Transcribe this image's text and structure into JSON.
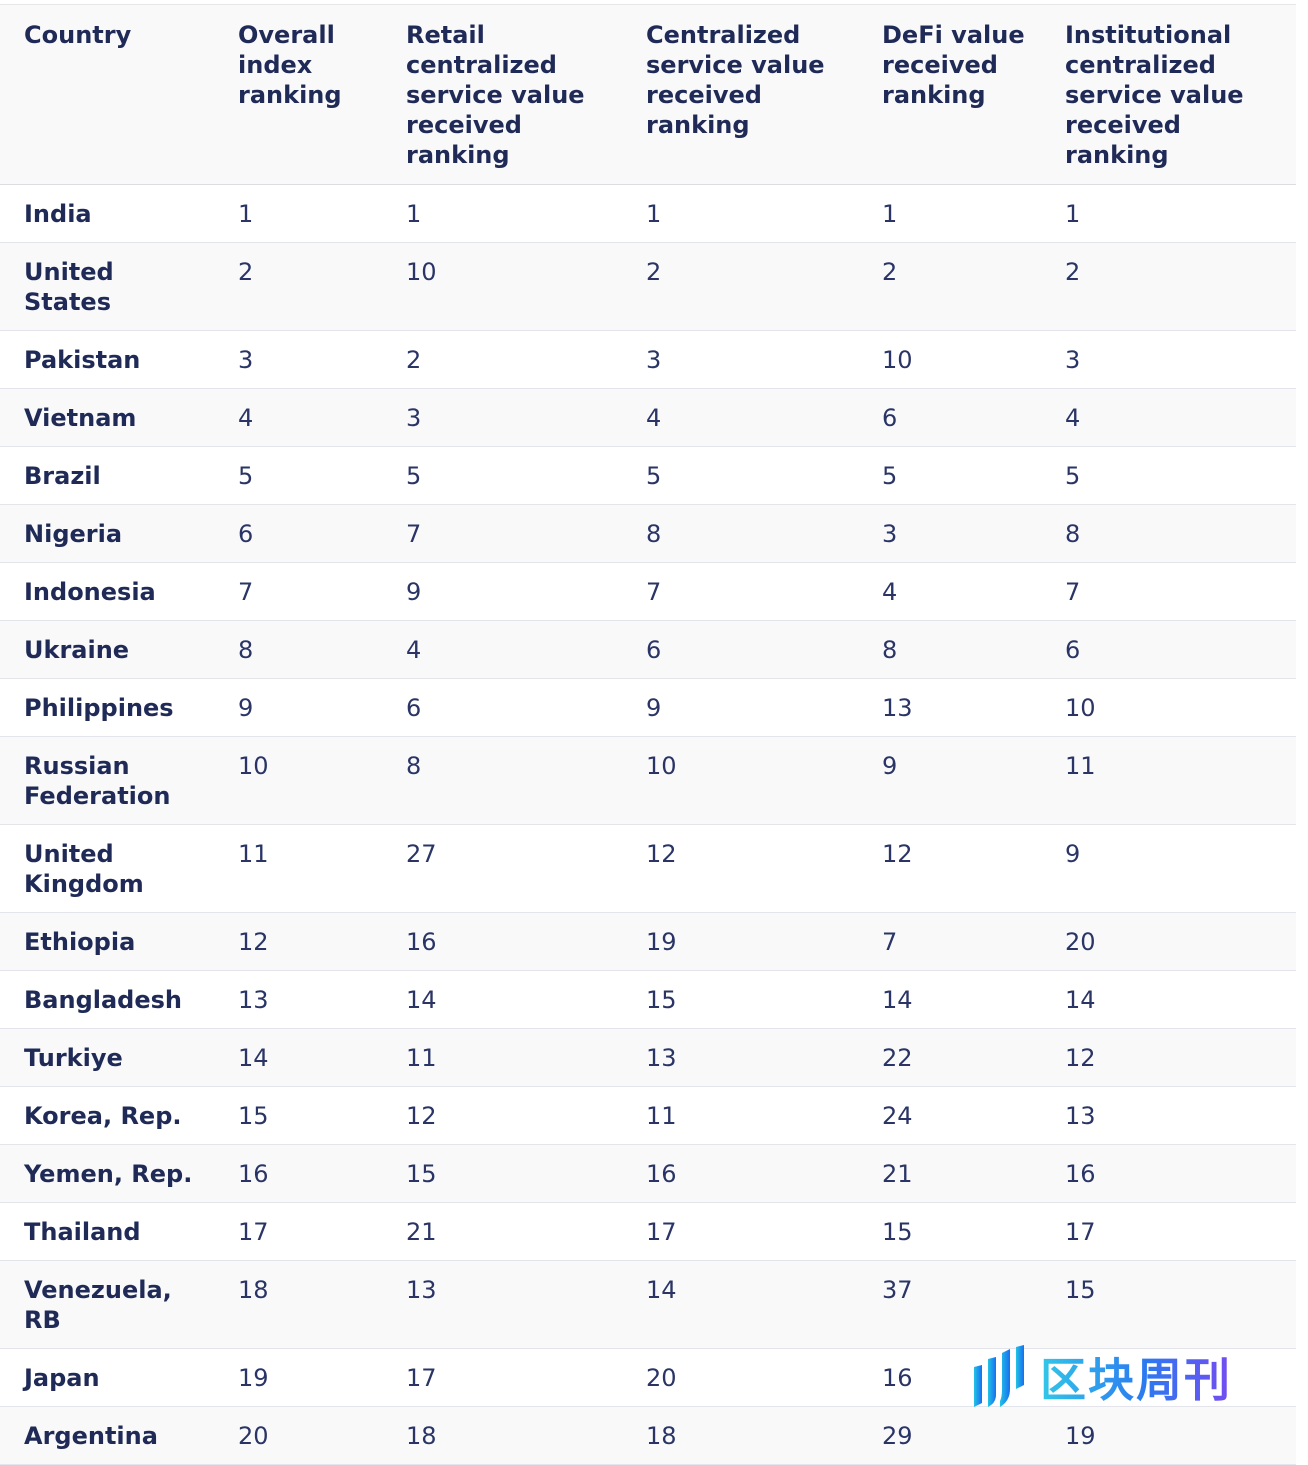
{
  "table": {
    "headers": [
      "Country",
      "Overall index ranking",
      "Retail centralized service value received ranking",
      "Centralized service value received ranking",
      "DeFi value received ranking",
      "Institutional centralized service value received ranking"
    ],
    "rows": [
      [
        "India",
        "1",
        "1",
        "1",
        "1",
        "1"
      ],
      [
        "United States",
        "2",
        "10",
        "2",
        "2",
        "2"
      ],
      [
        "Pakistan",
        "3",
        "2",
        "3",
        "10",
        "3"
      ],
      [
        "Vietnam",
        "4",
        "3",
        "4",
        "6",
        "4"
      ],
      [
        "Brazil",
        "5",
        "5",
        "5",
        "5",
        "5"
      ],
      [
        "Nigeria",
        "6",
        "7",
        "8",
        "3",
        "8"
      ],
      [
        "Indonesia",
        "7",
        "9",
        "7",
        "4",
        "7"
      ],
      [
        "Ukraine",
        "8",
        "4",
        "6",
        "8",
        "6"
      ],
      [
        "Philippines",
        "9",
        "6",
        "9",
        "13",
        "10"
      ],
      [
        "Russian Federation",
        "10",
        "8",
        "10",
        "9",
        "11"
      ],
      [
        "United Kingdom",
        "11",
        "27",
        "12",
        "12",
        "9"
      ],
      [
        "Ethiopia",
        "12",
        "16",
        "19",
        "7",
        "20"
      ],
      [
        "Bangladesh",
        "13",
        "14",
        "15",
        "14",
        "14"
      ],
      [
        "Turkiye",
        "14",
        "11",
        "13",
        "22",
        "12"
      ],
      [
        "Korea, Rep.",
        "15",
        "12",
        "11",
        "24",
        "13"
      ],
      [
        "Yemen, Rep.",
        "16",
        "15",
        "16",
        "21",
        "16"
      ],
      [
        "Thailand",
        "17",
        "21",
        "17",
        "15",
        "17"
      ],
      [
        "Venezuela, RB",
        "18",
        "13",
        "14",
        "37",
        "15"
      ],
      [
        "Japan",
        "19",
        "17",
        "20",
        "16",
        ""
      ],
      [
        "Argentina",
        "20",
        "18",
        "18",
        "29",
        "19"
      ]
    ]
  },
  "watermark": {
    "text": "区块周刊",
    "icon": "brand-logo-icon",
    "colors": [
      "#22c3e6",
      "#1a6ef0",
      "#6a3df0"
    ]
  }
}
